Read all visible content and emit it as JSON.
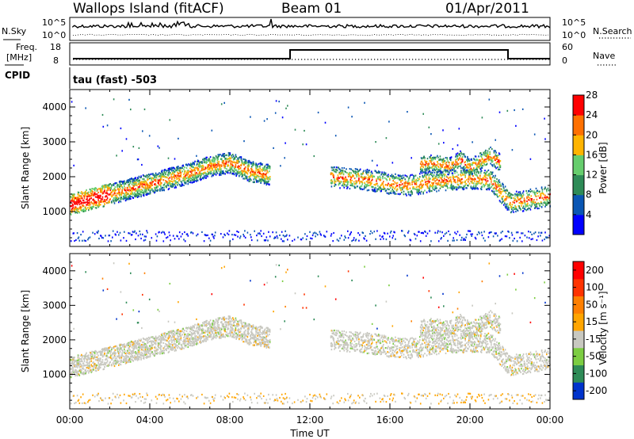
{
  "header": {
    "site": "Wallops Island (fitACF)",
    "beam": "Beam 01",
    "date": "01/Apr/2011"
  },
  "indicators": {
    "nsky_label": "N.Sky",
    "nsearch_label": "N.Search",
    "noise_ticks_left": [
      "10^5",
      "10^0"
    ],
    "noise_ticks_right": [
      "10^5",
      "10^0"
    ],
    "freq_label_top": "Freq.",
    "freq_label_bottom": "[MHz]",
    "freq_ticks": [
      "18",
      "8"
    ],
    "nave_label": "Nave",
    "nave_ticks": [
      "60",
      "0"
    ],
    "cpid_label": "CPID",
    "cpid_value": "tau (fast) -503"
  },
  "chart_data": [
    {
      "type": "heatmap",
      "panel": "power",
      "ylabel": "Slant Range [km]",
      "yticks": [
        "1000",
        "2000",
        "3000",
        "4000"
      ],
      "ylim": [
        0,
        4500
      ],
      "xlim": [
        "00:00",
        "24:00"
      ],
      "colorbar": {
        "label": "Power [dB]",
        "ticks": [
          "4",
          "8",
          "12",
          "16",
          "20",
          "24",
          "28"
        ],
        "colors": [
          "#0000ff",
          "#0a56b4",
          "#2e8b57",
          "#66cd6d",
          "#ffb400",
          "#ff7000",
          "#ff0000"
        ],
        "range": [
          0,
          30
        ]
      },
      "bands": [
        {
          "name": "main",
          "x": [
            0,
            1,
            2,
            3,
            4,
            5,
            6,
            7,
            8,
            9,
            10
          ],
          "y": [
            1200,
            1350,
            1500,
            1650,
            1800,
            1950,
            2100,
            2300,
            2400,
            2150,
            2050
          ]
        },
        {
          "name": "evening",
          "x": [
            13,
            14,
            15,
            16,
            17,
            18,
            19,
            20,
            21,
            22,
            23,
            24
          ],
          "y": [
            2000,
            1950,
            1900,
            1800,
            1750,
            1850,
            1900,
            1950,
            1900,
            1250,
            1350,
            1450
          ]
        },
        {
          "name": "upper",
          "x": [
            17.5,
            18,
            19,
            19.5,
            20,
            20.5,
            21,
            21.5
          ],
          "y": [
            2350,
            2400,
            2300,
            2500,
            2250,
            2450,
            2600,
            2400
          ]
        }
      ]
    },
    {
      "type": "heatmap",
      "panel": "velocity",
      "ylabel": "Slant Range [km]",
      "yticks": [
        "1000",
        "2000",
        "3000",
        "4000"
      ],
      "ylim": [
        0,
        4500
      ],
      "xlabel": "Time UT",
      "xticks": [
        "00:00",
        "04:00",
        "08:00",
        "12:00",
        "16:00",
        "20:00",
        "00:00"
      ],
      "xlim": [
        "00:00",
        "24:00"
      ],
      "colorbar": {
        "label": "Velocity [m s⁻¹]",
        "ticks": [
          "200",
          "100",
          "50",
          "15",
          "-15",
          "-50",
          "-100",
          "-200"
        ],
        "colors": [
          "#0033cc",
          "#2e8b57",
          "#7ccd42",
          "#c8c8c0",
          "#ffa500",
          "#ff7f00",
          "#ff3300",
          "#ff0000"
        ]
      }
    }
  ]
}
